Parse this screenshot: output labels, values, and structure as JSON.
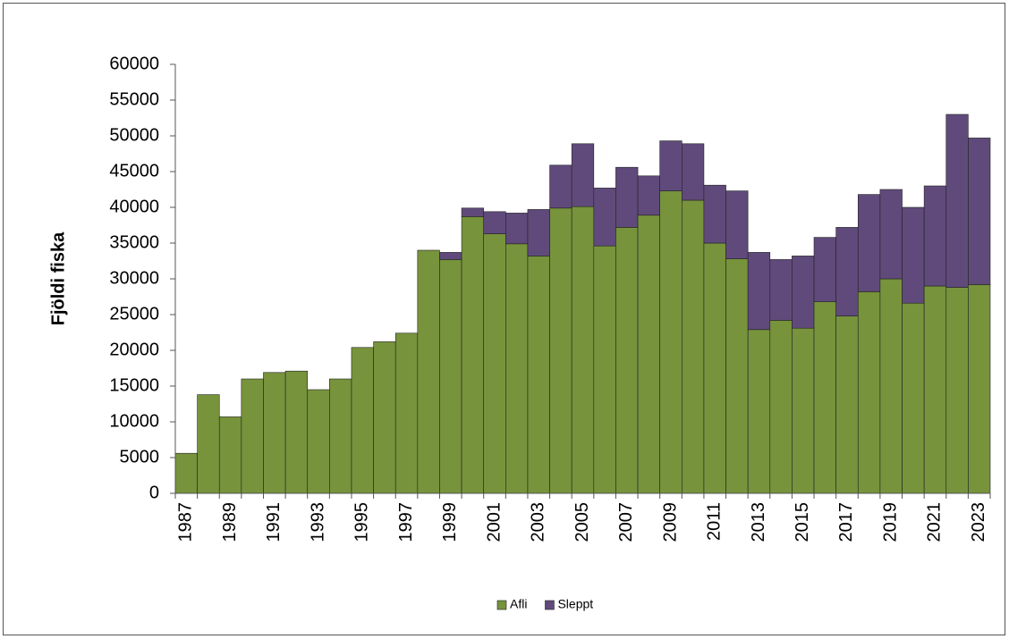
{
  "chart_data": {
    "type": "stacked_bar",
    "y_label": "Fjöldi fiska",
    "categories": [
      "1987",
      null,
      "1989",
      null,
      "1991",
      null,
      "1993",
      null,
      "1995",
      null,
      "1997",
      null,
      "1999",
      null,
      "2001",
      null,
      "2003",
      null,
      "2005",
      null,
      "2007",
      null,
      "2009",
      null,
      "2011",
      null,
      "2013",
      null,
      "2015",
      null,
      "2017",
      null,
      "2019",
      null,
      "2021",
      null,
      "2023"
    ],
    "series": [
      {
        "name": "Afli",
        "color": "#77933c",
        "values": [
          5600,
          13800,
          10700,
          16000,
          16900,
          17100,
          14500,
          16000,
          20400,
          21200,
          22400,
          34000,
          32700,
          38700,
          36300,
          34900,
          33200,
          39900,
          40100,
          34600,
          37200,
          38900,
          42300,
          41000,
          35000,
          32800,
          22900,
          24200,
          23100,
          26800,
          24800,
          28200,
          30000,
          26600,
          29000,
          28800,
          29200
        ]
      },
      {
        "name": "Sleppt",
        "color": "#604a7b",
        "values": [
          0,
          0,
          0,
          0,
          0,
          0,
          0,
          0,
          0,
          0,
          0,
          0,
          1000,
          1200,
          3100,
          4300,
          6500,
          6000,
          8800,
          8100,
          8400,
          5500,
          7000,
          7900,
          8100,
          9500,
          10800,
          8500,
          10100,
          9000,
          12400,
          13600,
          12500,
          13400,
          14000,
          24200,
          20500
        ]
      }
    ],
    "ylim": [
      0,
      60000
    ],
    "yticks": [
      0,
      5000,
      10000,
      15000,
      20000,
      25000,
      30000,
      35000,
      40000,
      45000,
      50000,
      55000,
      60000
    ],
    "legend": "bottom"
  }
}
